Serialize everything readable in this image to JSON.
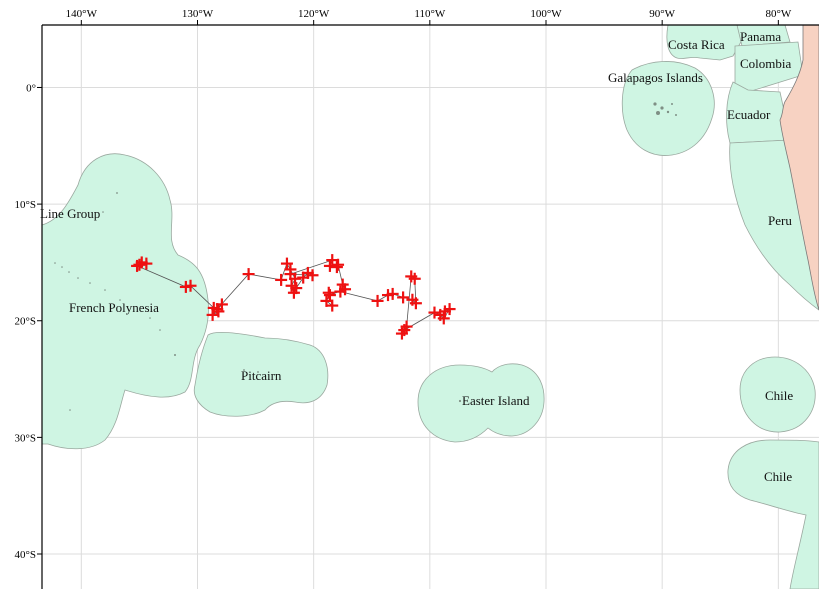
{
  "map": {
    "lon_ticks": [
      "140°W",
      "130°W",
      "120°W",
      "110°W",
      "100°W",
      "90°W",
      "80°W"
    ],
    "lat_ticks": [
      "0°",
      "10°S",
      "20°S",
      "30°S",
      "40°S"
    ],
    "lon_range": [
      -147.0,
      -76.5
    ],
    "lat_range": [
      -43.0,
      7.5
    ],
    "colors": {
      "eez": "#cff5e3",
      "land": "#f7d2c2",
      "track_marker": "#ee1111"
    }
  },
  "regions": [
    {
      "id": "costa-rica",
      "label": "Costa Rica"
    },
    {
      "id": "panama",
      "label": "Panama"
    },
    {
      "id": "colombia",
      "label": "Colombia"
    },
    {
      "id": "galapagos",
      "label": "Galapagos Islands"
    },
    {
      "id": "ecuador",
      "label": "Ecuador"
    },
    {
      "id": "peru",
      "label": "Peru"
    },
    {
      "id": "line-group",
      "label": "Line Group"
    },
    {
      "id": "french-polynesia",
      "label": "French Polynesia"
    },
    {
      "id": "pitcairn",
      "label": "Pitcairn"
    },
    {
      "id": "easter-island",
      "label": "Easter Island"
    },
    {
      "id": "chile-1",
      "label": "Chile"
    },
    {
      "id": "chile-2",
      "label": "Chile"
    }
  ],
  "track": {
    "positions": [
      [
        -135.0,
        -15.2
      ],
      [
        -134.8,
        -15.0
      ],
      [
        -134.4,
        -15.1
      ],
      [
        -135.2,
        -15.3
      ],
      [
        -131.0,
        -17.1
      ],
      [
        -130.6,
        -17.0
      ],
      [
        -128.6,
        -18.9
      ],
      [
        -128.2,
        -19.2
      ],
      [
        -128.7,
        -19.5
      ],
      [
        -127.9,
        -18.6
      ],
      [
        -128.3,
        -19.0
      ],
      [
        -125.6,
        -16.0
      ],
      [
        -122.8,
        -16.5
      ],
      [
        -122.3,
        -15.1
      ],
      [
        -122.0,
        -15.6
      ],
      [
        -121.6,
        -16.4
      ],
      [
        -121.9,
        -17.0
      ],
      [
        -121.7,
        -17.6
      ],
      [
        -121.5,
        -17.2
      ],
      [
        -120.9,
        -16.3
      ],
      [
        -120.5,
        -15.9
      ],
      [
        -120.1,
        -16.1
      ],
      [
        -122.0,
        -16.0
      ],
      [
        -118.4,
        -14.8
      ],
      [
        -118.6,
        -15.3
      ],
      [
        -118.0,
        -15.4
      ],
      [
        -117.9,
        -15.2
      ],
      [
        -117.5,
        -16.9
      ],
      [
        -117.3,
        -17.3
      ],
      [
        -118.6,
        -17.8
      ],
      [
        -118.9,
        -18.3
      ],
      [
        -118.4,
        -18.7
      ],
      [
        -118.7,
        -17.6
      ],
      [
        -117.7,
        -17.5
      ],
      [
        -114.5,
        -18.3
      ],
      [
        -113.6,
        -17.8
      ],
      [
        -113.2,
        -17.7
      ],
      [
        -112.3,
        -18.0
      ],
      [
        -111.5,
        -18.2
      ],
      [
        -111.2,
        -18.5
      ],
      [
        -111.3,
        -16.4
      ],
      [
        -111.6,
        -16.2
      ],
      [
        -112.0,
        -20.5
      ],
      [
        -112.4,
        -21.1
      ],
      [
        -112.2,
        -20.8
      ],
      [
        -109.6,
        -19.3
      ],
      [
        -109.1,
        -19.5
      ],
      [
        -108.8,
        -19.8
      ],
      [
        -108.3,
        -19.0
      ],
      [
        -108.7,
        -19.2
      ]
    ]
  }
}
